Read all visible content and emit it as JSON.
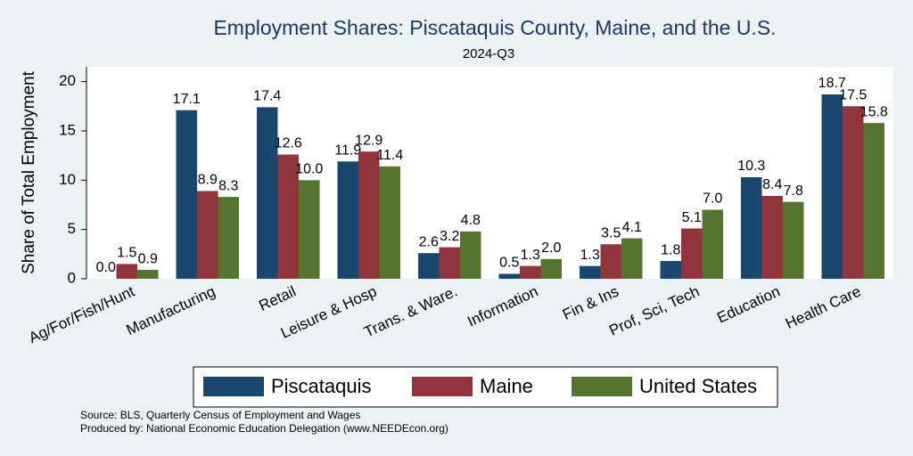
{
  "chart_data": {
    "type": "bar",
    "title": "Employment Shares: Piscataquis County, Maine, and the U.S.",
    "subtitle": "2024-Q3",
    "y_label": "Share of Total Employment",
    "categories": [
      "Ag/For/Fish/Hunt",
      "Manufacturing",
      "Retail",
      "Leisure & Hosp",
      "Trans. & Ware.",
      "Information",
      "Fin & Ins",
      "Prof, Sci, Tech",
      "Education",
      "Health Care"
    ],
    "series": [
      {
        "name": "Piscataquis",
        "color": "#1a476f",
        "values": [
          0.0,
          17.1,
          17.4,
          11.9,
          2.6,
          0.5,
          1.3,
          1.8,
          10.3,
          18.7
        ],
        "value_labels": [
          "0.0",
          "17.1",
          "17.4",
          "11.9",
          "2.6",
          "0.5",
          "1.3",
          "1.8",
          "10.3",
          "18.7"
        ]
      },
      {
        "name": "Maine",
        "color": "#90353b",
        "values": [
          1.5,
          8.9,
          12.6,
          12.9,
          3.2,
          1.3,
          3.5,
          5.1,
          8.4,
          17.5
        ],
        "value_labels": [
          "1.5",
          "8.9",
          "12.6",
          "12.9",
          "3.2",
          "1.3",
          "3.5",
          "5.1",
          "8.4",
          "17.5"
        ]
      },
      {
        "name": "United States",
        "color": "#55752f",
        "values": [
          0.9,
          8.3,
          10.0,
          11.4,
          4.8,
          2.0,
          4.1,
          7.0,
          7.8,
          15.8
        ],
        "value_labels": [
          "0.9",
          "8.3",
          "10.0",
          "11.4",
          "4.8",
          "2.0",
          "4.1",
          "7.0",
          "7.8",
          "15.8"
        ]
      }
    ],
    "ylim": [
      0,
      21.5
    ],
    "yticks": [
      0,
      5,
      10,
      15,
      20
    ],
    "grid": false,
    "legend": "bottom",
    "notes": [
      "Source: BLS, Quarterly Census of Employment and Wages",
      "Produced by: National Economic Education Delegation (www.NEEDEcon.org)"
    ]
  }
}
